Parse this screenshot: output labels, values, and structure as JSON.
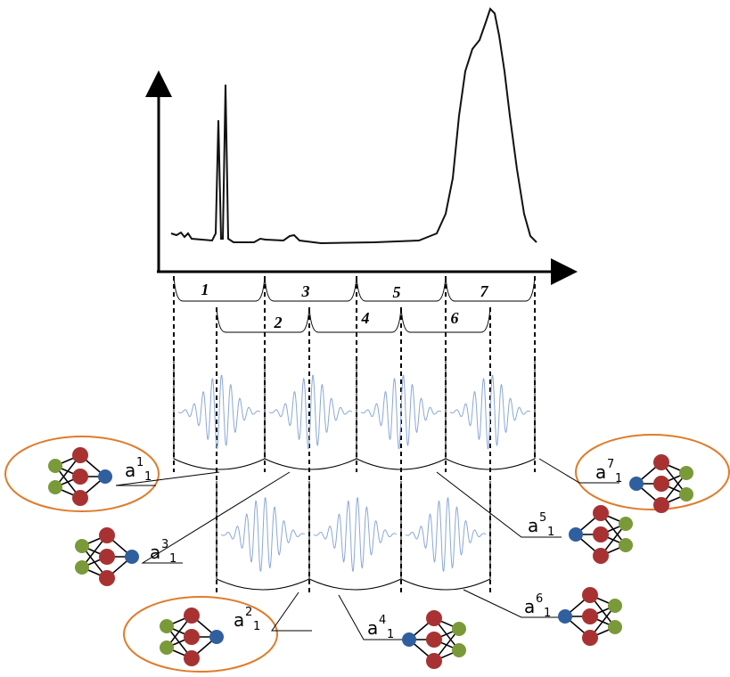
{
  "segments": [
    "1",
    "2",
    "3",
    "4",
    "5",
    "6",
    "7"
  ],
  "models": [
    {
      "base": "a",
      "sup": "1",
      "sub": "1"
    },
    {
      "base": "a",
      "sup": "2",
      "sub": "1"
    },
    {
      "base": "a",
      "sup": "3",
      "sub": "1"
    },
    {
      "base": "a",
      "sup": "4",
      "sub": "1"
    },
    {
      "base": "a",
      "sup": "5",
      "sub": "1"
    },
    {
      "base": "a",
      "sup": "6",
      "sub": "1"
    },
    {
      "base": "a",
      "sup": "7",
      "sub": "1"
    }
  ]
}
